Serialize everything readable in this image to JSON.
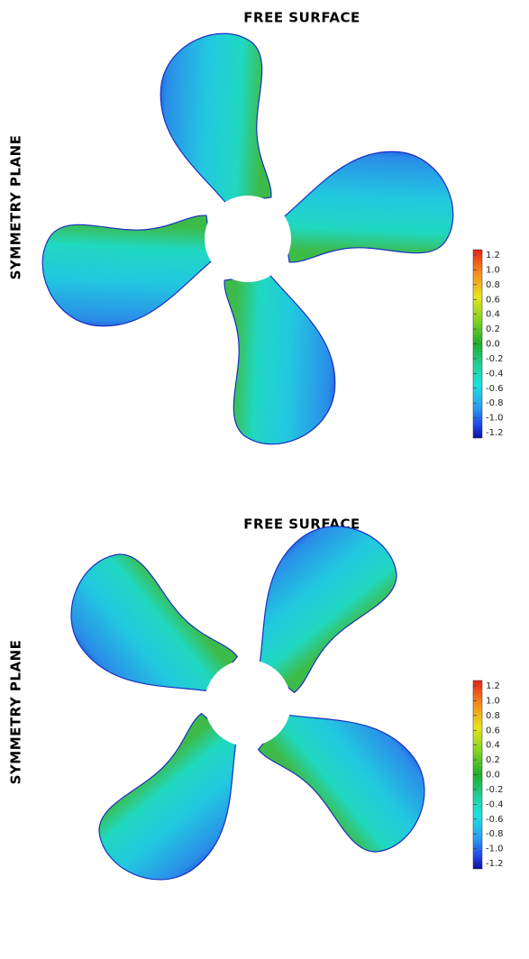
{
  "panels": [
    {
      "top_label": "FREE SURFACE",
      "side_label": "SYMMETRY PLANE",
      "colorbar": {
        "lim": [
          -1.2,
          1.2
        ],
        "ticks": [
          1.2,
          {
            "value": 1,
            "label": "1.0"
          },
          0.8,
          0.6,
          0.4,
          0.2,
          {
            "value": 0,
            "label": "0.0"
          },
          -0.2,
          -0.4,
          -0.6,
          -0.8,
          {
            "value": -1,
            "label": "-1.0"
          },
          -1.2
        ]
      }
    },
    {
      "top_label": "FREE SURFACE",
      "side_label": "SYMMETRY PLANE",
      "colorbar": {
        "lim": [
          -1.2,
          1.2
        ],
        "ticks": [
          1.2,
          {
            "value": 1,
            "label": "1.0"
          },
          0.8,
          0.6,
          0.4,
          0.2,
          {
            "value": 0,
            "label": "0.0"
          },
          -0.2,
          -0.4,
          -0.6,
          -0.8,
          {
            "value": -1,
            "label": "-1.0"
          },
          -1.2
        ]
      }
    }
  ]
}
